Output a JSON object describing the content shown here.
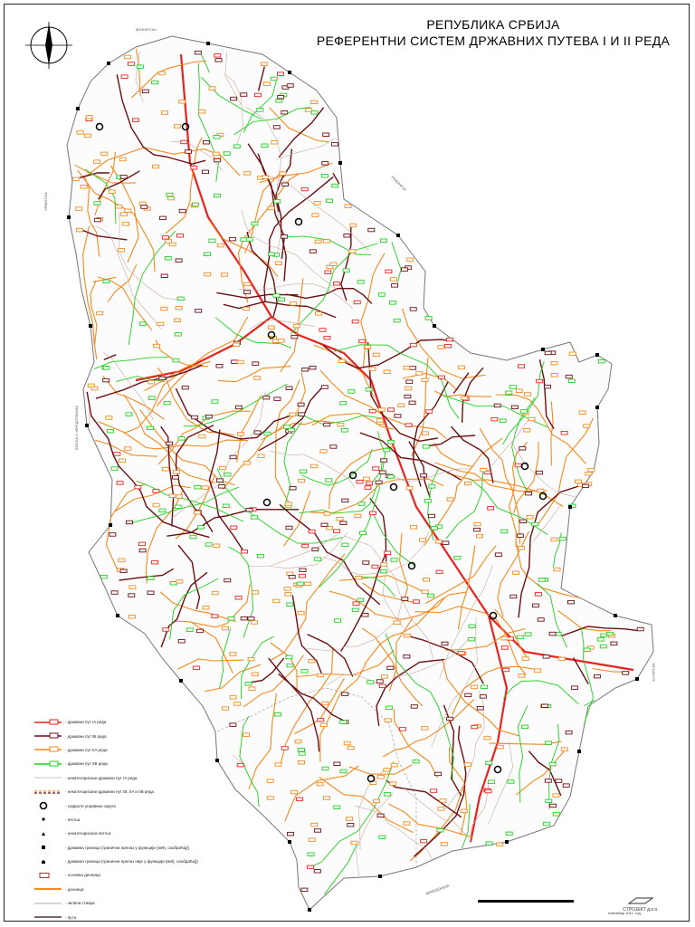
{
  "title": {
    "line1": "РЕПУБЛИКА СРБИЈА",
    "line2": "РЕФЕРЕНТНИ СИСТЕМ ДРЖАВНИХ ПУТЕВА I И II РЕДА"
  },
  "legend": [
    {
      "key": "ia",
      "label": "државни пут IA реда",
      "color": "#e8231f",
      "kind": "road-sign"
    },
    {
      "key": "ib",
      "label": "државни пут IB реда",
      "color": "#6b0f12",
      "kind": "road-sign"
    },
    {
      "key": "iia",
      "label": "државни пут IIA реда",
      "color": "#f28a1e",
      "kind": "road-sign"
    },
    {
      "key": "iib",
      "label": "државни пут IIB реда",
      "color": "#1fd01f",
      "kind": "road-sign"
    },
    {
      "key": "unc1",
      "label": "некатегорисани државни пут IA реда",
      "color": "#b0b0b0",
      "kind": "thin-line"
    },
    {
      "key": "unc2",
      "label": "некатегорисани државни пут IB, IIA и IIB реда",
      "color": "#f28a1e",
      "kind": "dashed"
    },
    {
      "key": "ref",
      "label": "седиште управних округа",
      "color": "#000000",
      "kind": "ring"
    },
    {
      "key": "loop",
      "label": "петља",
      "color": "#000000",
      "kind": "dot"
    },
    {
      "key": "incl",
      "label": "некатегорисана петља",
      "color": "#000000",
      "kind": "triangle"
    },
    {
      "key": "bcp1",
      "label": "државна граница (гранични прелаз у функцији (међ. саобраћај))",
      "color": "#000000",
      "kind": "square"
    },
    {
      "key": "bcp2",
      "label": "државна граница (гранични прелаз није у функцији (међ. саобраћај))",
      "color": "#000000",
      "kind": "house"
    },
    {
      "key": "sect",
      "label": "основна деоница",
      "color": "#c0262b",
      "kind": "box"
    },
    {
      "key": "dep",
      "label": "деоница",
      "color": "#f28a1e",
      "kind": "thick-line"
    },
    {
      "key": "rail",
      "label": "зелена ствара",
      "color": "#8a8a8a",
      "kind": "thin-line"
    },
    {
      "key": "road",
      "label": "пута",
      "color": "#7a6a6a",
      "kind": "thick-line"
    }
  ],
  "footer": {
    "company": "СТРОЈЕКТ д.о.о.",
    "date": "новембар 2011. год."
  },
  "colors": {
    "border": "#777777",
    "ia": "#e8231f",
    "ib": "#6b0f12",
    "iia": "#f28a1e",
    "iib": "#1fd01f"
  },
  "icons": {
    "north_arrow": "compass-north-arrow-icon",
    "logo": "company-logo-icon"
  }
}
